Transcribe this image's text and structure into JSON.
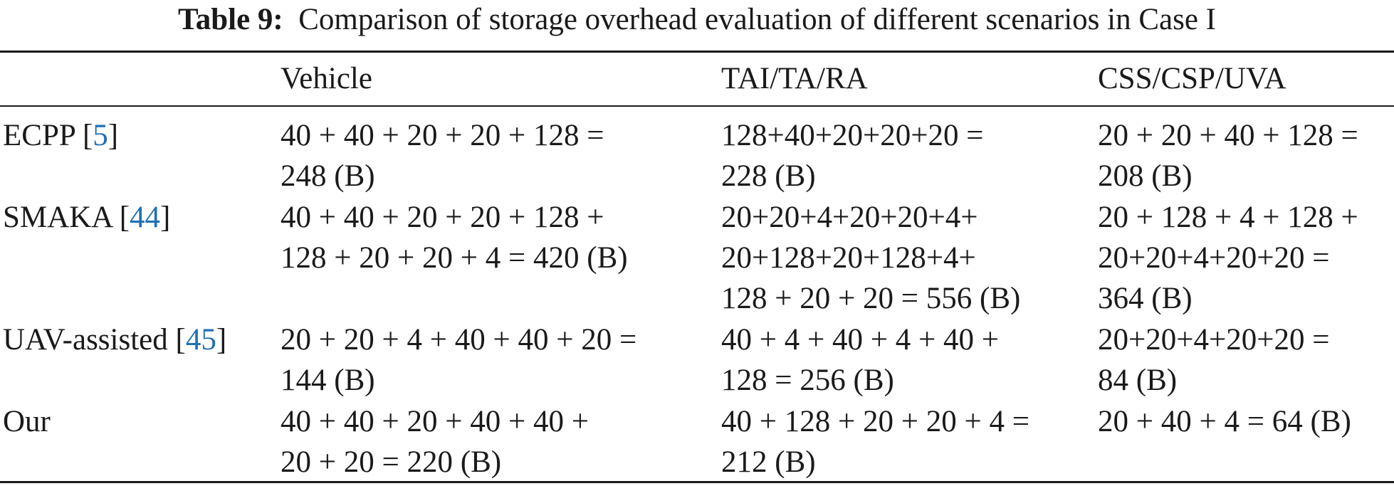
{
  "caption": {
    "label": "Table 9:",
    "text": "Comparison of storage overhead evaluation of different scenarios in Case I"
  },
  "columns": [
    "",
    "Vehicle",
    "TAI/TA/RA",
    "CSS/CSP/UVA"
  ],
  "rows": [
    {
      "scheme": "ECPP",
      "ref": "5",
      "vehicle": [
        "40 + 40 + 20 + 20 + 128 =",
        "248 (B)"
      ],
      "tai": [
        "128+40+20+20+20 =",
        "228 (B)"
      ],
      "css": [
        "20 + 20 + 40 + 128 =",
        "208 (B)"
      ]
    },
    {
      "scheme": "SMAKA",
      "ref": "44",
      "vehicle": [
        "40 + 40 + 20 + 20 + 128 +",
        "128 + 20 + 20 + 4 = 420 (B)"
      ],
      "tai": [
        "20+20+4+20+20+4+",
        "20+128+20+128+4+",
        "128 + 20 + 20 = 556 (B)"
      ],
      "css": [
        "20 + 128 + 4 + 128 +",
        "20+20+4+20+20 =",
        "364 (B)"
      ]
    },
    {
      "scheme": "UAV-assisted",
      "ref": "45",
      "vehicle": [
        "20 + 20 + 4 + 40 + 40 + 20 =",
        "144 (B)"
      ],
      "tai": [
        "40 + 4 + 40 + 4 + 40 +",
        "128 = 256 (B)"
      ],
      "css": [
        "20+20+4+20+20 =",
        "84 (B)"
      ]
    },
    {
      "scheme": "Our",
      "ref": "",
      "vehicle": [
        "40 + 40 + 20 + 40 + 40 +",
        "20 + 20 = 220 (B)"
      ],
      "tai": [
        "40 + 128 + 20 + 20 + 4 =",
        "212  (B)"
      ],
      "css": [
        "20 + 40 + 4 = 64 (B)"
      ]
    }
  ]
}
